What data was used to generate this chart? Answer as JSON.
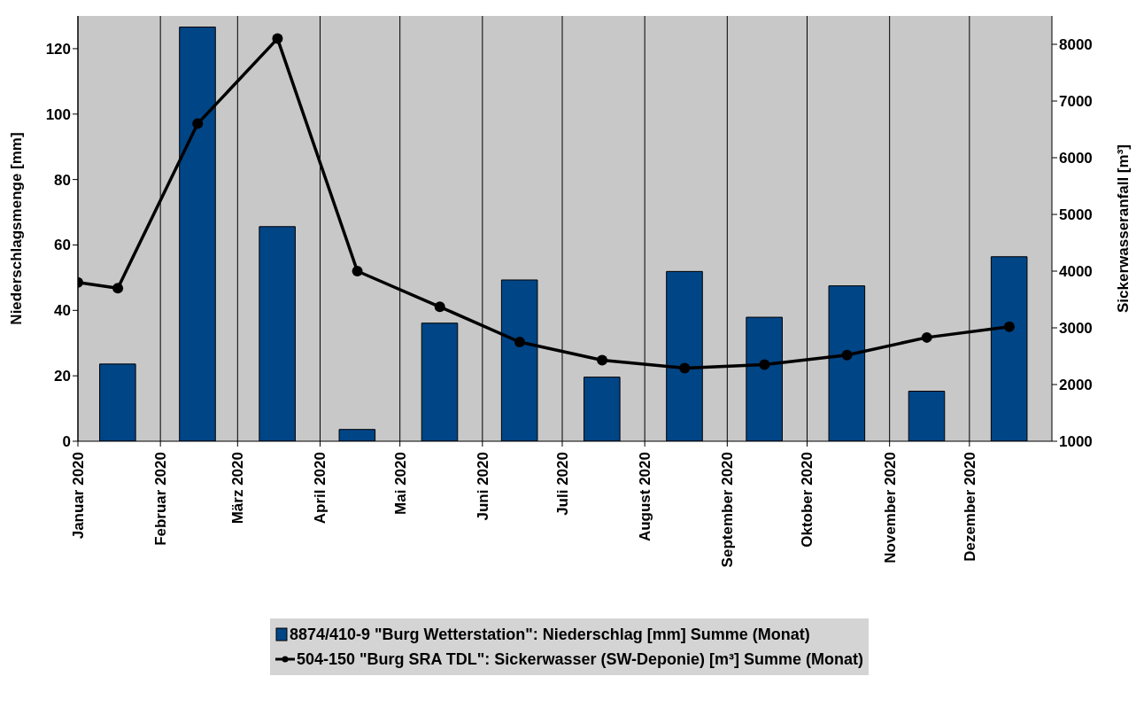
{
  "chart_data": {
    "type": "bar",
    "x": [
      "2020-01-16",
      "2020-02-15",
      "2020-03-16",
      "2020-04-15",
      "2020-05-16",
      "2020-06-15",
      "2020-07-16",
      "2020-08-16",
      "2020-09-15",
      "2020-10-16",
      "2020-11-15",
      "2020-12-16"
    ],
    "series": [
      {
        "name": "8874/410-9 \"Burg Wetterstation\": Niederschlag [mm] Summe (Monat)",
        "color": "#004586",
        "values": [
          23.6,
          126.6,
          65.6,
          3.6,
          36.1,
          49.3,
          19.6,
          51.9,
          37.9,
          47.5,
          15.3,
          56.4
        ]
      },
      {
        "name": "504-150 \"Burg SRA TDL\": Sickerwasser (SW-Deponie) [m³] Summe (Monat)",
        "type": "line",
        "axis": "y2",
        "color": "#000000",
        "x": [
          "2020-01-01",
          "2020-01-16",
          "2020-02-15",
          "2020-03-16",
          "2020-04-15",
          "2020-05-16",
          "2020-06-15",
          "2020-07-16",
          "2020-08-16",
          "2020-09-15",
          "2020-10-16",
          "2020-11-15",
          "2020-12-16"
        ],
        "values": [
          3800,
          3700,
          6600,
          8100,
          4000,
          3370,
          2750,
          2430,
          2290,
          2350,
          2520,
          2830,
          3020
        ]
      }
    ],
    "ylabel": "Niederschlagsmenge [mm]",
    "y2label": "Sickerwasseranfall [m³]",
    "xlim": [
      "2020-01-01",
      "2021-01-01"
    ],
    "xticks": [
      {
        "value": "2020-01-01",
        "label": "Januar 2020"
      },
      {
        "value": "2020-02-01",
        "label": "Februar 2020"
      },
      {
        "value": "2020-03-01",
        "label": "März 2020"
      },
      {
        "value": "2020-04-01",
        "label": "April 2020"
      },
      {
        "value": "2020-05-01",
        "label": "Mai 2020"
      },
      {
        "value": "2020-06-01",
        "label": "Juni 2020"
      },
      {
        "value": "2020-07-01",
        "label": "Juli 2020"
      },
      {
        "value": "2020-08-01",
        "label": "August 2020"
      },
      {
        "value": "2020-09-01",
        "label": "September 2020"
      },
      {
        "value": "2020-10-01",
        "label": "Oktober 2020"
      },
      {
        "value": "2020-11-01",
        "label": "November 2020"
      },
      {
        "value": "2020-12-01",
        "label": "Dezember 2020"
      }
    ],
    "ylim": [
      0,
      130
    ],
    "yticks": [
      0,
      20,
      40,
      60,
      80,
      100,
      120
    ],
    "y2lim": [
      1000,
      8500
    ],
    "y2ticks": [
      1000,
      2000,
      3000,
      4000,
      5000,
      6000,
      7000,
      8000
    ],
    "grid": "x",
    "legend": "bottom",
    "marker": "circle",
    "line_style": "solid"
  }
}
